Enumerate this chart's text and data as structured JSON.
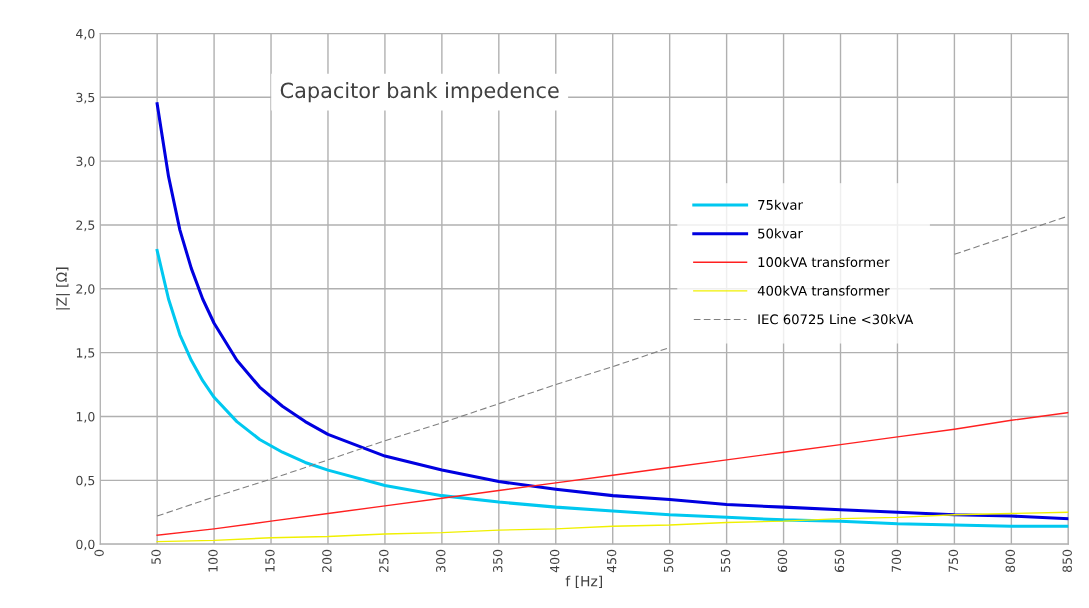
{
  "chart_data": {
    "type": "line",
    "title": "Capacitor bank impedence",
    "xlabel": "f [Hz]",
    "ylabel": "|Z| [Ω]",
    "series": [
      {
        "name": "75kvar",
        "color": "#00c8f0",
        "x": [
          50,
          60,
          70,
          80,
          90,
          100,
          120,
          140,
          160,
          180,
          200,
          250,
          300,
          350,
          400,
          450,
          500,
          550,
          600,
          650,
          700,
          750,
          800,
          850
        ],
        "values": [
          2.3,
          1.92,
          1.64,
          1.44,
          1.28,
          1.15,
          0.96,
          0.82,
          0.72,
          0.64,
          0.58,
          0.46,
          0.38,
          0.33,
          0.29,
          0.26,
          0.23,
          0.21,
          0.19,
          0.18,
          0.16,
          0.15,
          0.14,
          0.14
        ]
      },
      {
        "name": "50kvar",
        "color": "#0000e0",
        "x": [
          50,
          60,
          70,
          80,
          90,
          100,
          120,
          140,
          160,
          180,
          200,
          250,
          300,
          350,
          400,
          450,
          500,
          550,
          600,
          650,
          700,
          750,
          800,
          850
        ],
        "values": [
          3.45,
          2.88,
          2.46,
          2.16,
          1.92,
          1.73,
          1.44,
          1.23,
          1.08,
          0.96,
          0.86,
          0.69,
          0.58,
          0.49,
          0.43,
          0.38,
          0.35,
          0.31,
          0.29,
          0.27,
          0.25,
          0.23,
          0.22,
          0.2
        ]
      },
      {
        "name": "100kVA transformer",
        "color": "#ff2020",
        "x": [
          50,
          100,
          150,
          200,
          250,
          300,
          350,
          400,
          450,
          500,
          550,
          600,
          650,
          700,
          750,
          800,
          850
        ],
        "values": [
          0.07,
          0.12,
          0.18,
          0.24,
          0.3,
          0.36,
          0.42,
          0.48,
          0.54,
          0.6,
          0.66,
          0.72,
          0.78,
          0.84,
          0.9,
          0.97,
          1.03
        ]
      },
      {
        "name": "400kVA transformer",
        "color": "#f0f000",
        "x": [
          50,
          100,
          150,
          200,
          250,
          300,
          350,
          400,
          450,
          500,
          550,
          600,
          650,
          700,
          750,
          800,
          850
        ],
        "values": [
          0.02,
          0.03,
          0.05,
          0.06,
          0.08,
          0.09,
          0.11,
          0.12,
          0.14,
          0.15,
          0.17,
          0.18,
          0.2,
          0.21,
          0.23,
          0.24,
          0.25
        ]
      },
      {
        "name": "IEC 60725 Line <30kVA",
        "color": "#808080",
        "line_style": "dashed",
        "x": [
          50,
          100,
          150,
          200,
          250,
          300,
          350,
          400,
          450,
          500,
          550,
          600,
          650,
          700,
          750,
          800,
          850
        ],
        "values": [
          0.22,
          0.37,
          0.51,
          0.66,
          0.81,
          0.95,
          1.1,
          1.25,
          1.39,
          1.54,
          null,
          null,
          null,
          null,
          2.27,
          2.42,
          2.57
        ]
      }
    ],
    "xlim": [
      0,
      850
    ],
    "xticks": [
      0,
      50,
      100,
      150,
      200,
      250,
      300,
      350,
      400,
      450,
      500,
      550,
      600,
      650,
      700,
      750,
      800,
      850
    ],
    "ylim": [
      0,
      4
    ],
    "yticks": [
      {
        "value": 0,
        "label": "0,0"
      },
      {
        "value": 0.5,
        "label": "0,5"
      },
      {
        "value": 1,
        "label": "1,0"
      },
      {
        "value": 1.5,
        "label": "1,5"
      },
      {
        "value": 2,
        "label": "2,0"
      },
      {
        "value": 2.5,
        "label": "2,5"
      },
      {
        "value": 3,
        "label": "3,0"
      },
      {
        "value": 3.5,
        "label": "3,5"
      },
      {
        "value": 4,
        "label": "4,0"
      }
    ],
    "grid": true,
    "legend": "right",
    "marker": "none"
  }
}
